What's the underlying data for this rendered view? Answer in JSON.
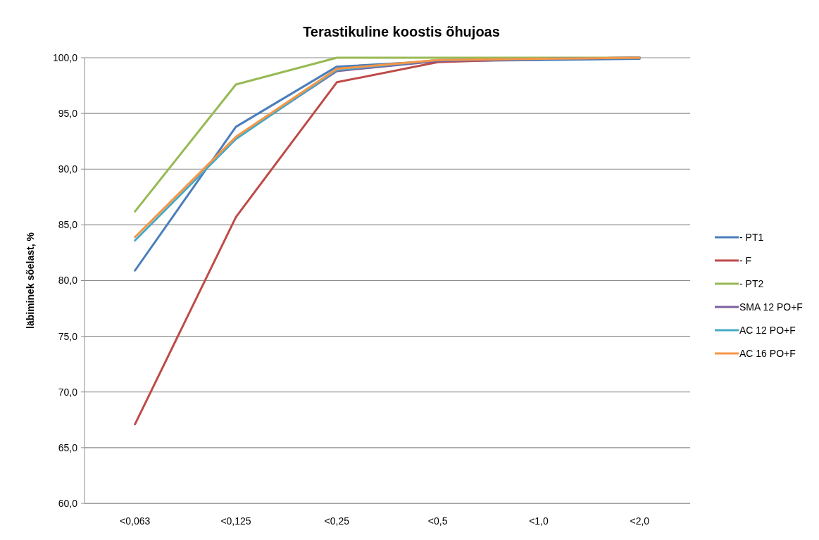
{
  "chart_data": {
    "type": "line",
    "title": "Terastikuline koostis õhujoas",
    "ylabel": "läbiminek sõelast, %",
    "categories": [
      "<0,063",
      "<0,125",
      "<0,25",
      "<0,5",
      "<1,0",
      "<2,0"
    ],
    "series": [
      {
        "name": "- PT1",
        "color": "#4a7ebb",
        "values": [
          80.9,
          93.8,
          99.2,
          99.7,
          99.8,
          99.9
        ]
      },
      {
        "name": "- F",
        "color": "#be4b48",
        "values": [
          67.1,
          85.7,
          97.8,
          99.6,
          99.9,
          100.0
        ]
      },
      {
        "name": "- PT2",
        "color": "#98b954",
        "values": [
          86.2,
          97.6,
          100.0,
          100.0,
          100.0,
          100.0
        ]
      },
      {
        "name": "SMA 12 PO+F",
        "color": "#7d60a0",
        "values": [
          null,
          92.8,
          98.8,
          99.7,
          99.9,
          100.0
        ]
      },
      {
        "name": "AC 12 PO+F",
        "color": "#46aac5",
        "values": [
          83.6,
          92.7,
          98.9,
          99.8,
          99.9,
          100.0
        ]
      },
      {
        "name": "AC 16 PO+F",
        "color": "#f79646",
        "values": [
          83.9,
          92.9,
          99.0,
          99.8,
          99.9,
          100.0
        ]
      }
    ],
    "ylim": [
      60,
      100
    ],
    "yticks": [
      {
        "value": 60,
        "label": "60,0"
      },
      {
        "value": 65,
        "label": "65,0"
      },
      {
        "value": 70,
        "label": "70,0"
      },
      {
        "value": 75,
        "label": "75,0"
      },
      {
        "value": 80,
        "label": "80,0"
      },
      {
        "value": 85,
        "label": "85,0"
      },
      {
        "value": 90,
        "label": "90,0"
      },
      {
        "value": 95,
        "label": "95,0"
      },
      {
        "value": 100,
        "label": "100,0"
      }
    ],
    "grid": "y",
    "legend": "right",
    "marker": "none",
    "line_style": "solid"
  }
}
